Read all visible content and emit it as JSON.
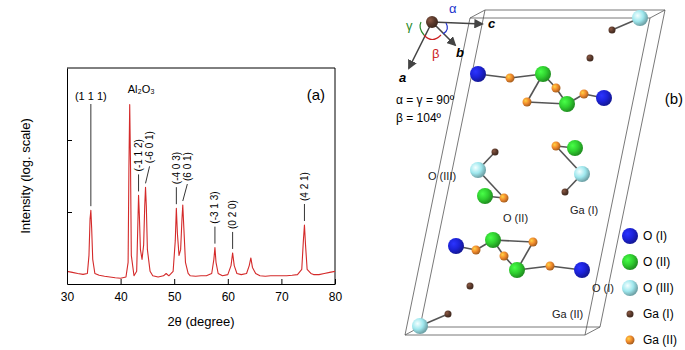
{
  "chart_data": {
    "type": "line",
    "panel_label": "(a)",
    "xlabel": "2θ (degree)",
    "ylabel": "Intensity (log. scale)",
    "color": "#d42a2a",
    "log": "y",
    "tick_labels": "x",
    "xlim": [
      30,
      80
    ],
    "xticks": [
      30,
      40,
      50,
      60,
      70,
      80
    ],
    "ylim": [
      1,
      1000
    ],
    "yticks": [
      10,
      100
    ],
    "x": [
      30,
      31,
      32,
      33,
      33.8,
      34.1,
      34.3,
      34.45,
      34.6,
      34.8,
      35.2,
      36,
      37,
      38,
      39,
      40,
      41,
      41.4,
      41.55,
      41.7,
      41.85,
      42,
      42.5,
      43,
      43.2,
      43.35,
      43.5,
      43.7,
      44,
      44.3,
      44.5,
      44.65,
      44.8,
      45,
      45.5,
      46,
      47,
      48,
      48.5,
      49,
      49.8,
      50.2,
      50.4,
      50.6,
      50.9,
      51.2,
      51.45,
      51.6,
      51.8,
      52.1,
      52.6,
      53,
      54,
      55,
      56,
      57,
      57.4,
      57.6,
      57.8,
      58.2,
      59,
      60,
      60.6,
      60.9,
      61.2,
      61.7,
      62.5,
      63.5,
      64,
      64.3,
      64.6,
      65.2,
      66,
      67,
      68,
      69,
      70,
      71,
      72,
      73,
      73.8,
      74.1,
      74.3,
      74.5,
      74.8,
      75.5,
      76,
      77,
      78,
      79,
      80
    ],
    "values": [
      1.5,
      1.45,
      1.4,
      1.36,
      1.4,
      2.5,
      8,
      10.6,
      6,
      2.2,
      1.4,
      1.32,
      1.28,
      1.25,
      1.22,
      1.2,
      1.25,
      2,
      40,
      310,
      45,
      2.5,
      1.3,
      1.5,
      6,
      17,
      9,
      3,
      2.2,
      3.5,
      12,
      22,
      12,
      3,
      1.5,
      1.3,
      1.25,
      1.3,
      1.4,
      1.3,
      1.5,
      4,
      11.3,
      5,
      2.5,
      3,
      8,
      12.5,
      6,
      2,
      1.4,
      1.3,
      1.28,
      1.3,
      1.3,
      1.4,
      2.2,
      3.2,
      2,
      1.4,
      1.3,
      1.35,
      1.8,
      2.7,
      1.8,
      1.4,
      1.35,
      1.4,
      1.8,
      2.3,
      1.7,
      1.4,
      1.3,
      1.28,
      1.3,
      1.3,
      1.3,
      1.3,
      1.32,
      1.35,
      1.6,
      4,
      6.6,
      3.5,
      1.6,
      1.4,
      1.35,
      1.35,
      1.4,
      1.45,
      1.5
    ],
    "annotations": [
      {
        "text": "(1 1 1)",
        "x": 34.45,
        "y": 10.6
      },
      {
        "text": "Al₂O₃",
        "x": 41.7,
        "y": 310
      },
      {
        "text": "(-1 1 2)",
        "x": 43.35,
        "y": 17
      },
      {
        "text": "(-6 0 1)",
        "x": 44.65,
        "y": 22
      },
      {
        "text": "(-4 0 3)",
        "x": 50.4,
        "y": 11.3
      },
      {
        "text": "(6 0 1)",
        "x": 51.6,
        "y": 12.5
      },
      {
        "text": "(-3 1 3)",
        "x": 57.6,
        "y": 3.2
      },
      {
        "text": "(0 2 0)",
        "x": 60.9,
        "y": 2.7
      },
      {
        "text": "(4 2 1)",
        "x": 74.3,
        "y": 6.6
      }
    ]
  },
  "diagram": {
    "panel_label": "(b)",
    "axis_labels": {
      "a": "a",
      "b": "b",
      "c": "c"
    },
    "angle_symbols": {
      "alpha": "α",
      "beta": "β",
      "gamma": "γ"
    },
    "angle_text": [
      "α = γ = 90º",
      "β = 104º"
    ],
    "species": [
      {
        "label": "O (I)",
        "color": "#1c22d8"
      },
      {
        "label": "O (II)",
        "color": "#2fcf2f"
      },
      {
        "label": "O (III)",
        "color": "#9fe8ee"
      },
      {
        "label": "Ga (I)",
        "color": "#5b3a2c"
      },
      {
        "label": "Ga (II)",
        "color": "#f0892c"
      }
    ],
    "atom_labels": [
      "O (III)",
      "O (II)",
      "Ga (I)",
      "O (I)",
      "Ga (II)"
    ]
  }
}
